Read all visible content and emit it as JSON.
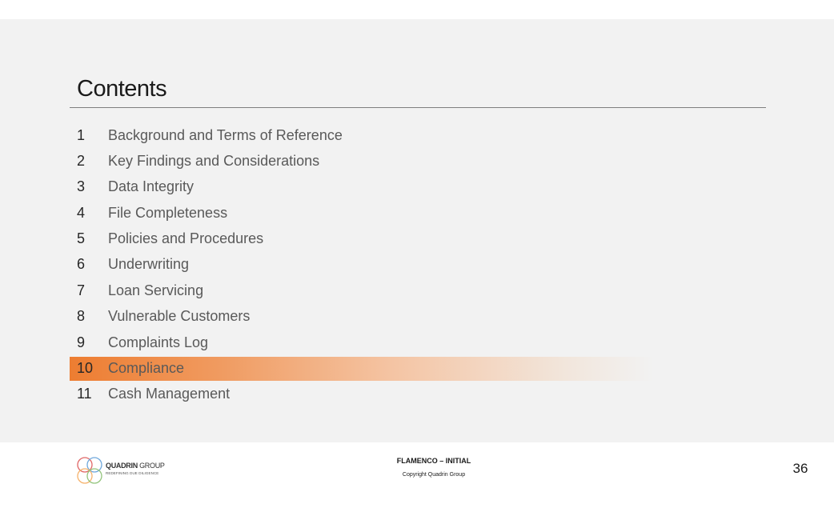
{
  "slide": {
    "title": "Contents",
    "toc": [
      {
        "num": "1",
        "label": "Background and Terms of Reference",
        "active": false
      },
      {
        "num": "2",
        "label": "Key Findings and Considerations",
        "active": false
      },
      {
        "num": "3",
        "label": "Data Integrity",
        "active": false
      },
      {
        "num": "4",
        "label": "File Completeness",
        "active": false
      },
      {
        "num": "5",
        "label": "Policies and Procedures",
        "active": false
      },
      {
        "num": "6",
        "label": "Underwriting",
        "active": false
      },
      {
        "num": "7",
        "label": "Loan Servicing",
        "active": false
      },
      {
        "num": "8",
        "label": "Vulnerable Customers",
        "active": false
      },
      {
        "num": "9",
        "label": "Complaints Log",
        "active": false
      },
      {
        "num": "10",
        "label": "Compliance",
        "active": true
      },
      {
        "num": "11",
        "label": "Cash Management",
        "active": false
      }
    ],
    "highlight_color": "#ed7d31"
  },
  "footer": {
    "logo": {
      "name_bold": "QUADRIN",
      "name_light": " GROUP",
      "tagline": "REDEFINING DUE DILIGENCE",
      "icon": "interlocking-circles-logo"
    },
    "title": "FLAMENCO – INITIAL",
    "copyright": "Copyright Quadrin Group",
    "page_number": "36"
  }
}
